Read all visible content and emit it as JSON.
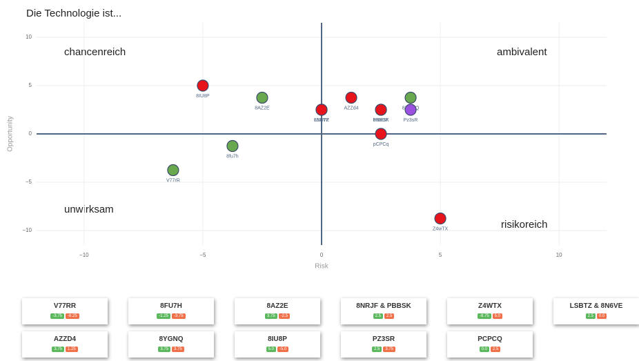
{
  "chart_data": {
    "type": "scatter",
    "title": "Die Technologie ist...",
    "x_label": "Risk",
    "y_label": "Opportunity",
    "xlim": [
      -12,
      12
    ],
    "ylim": [
      -11.5,
      11.5
    ],
    "xticks": [
      {
        "value": -10,
        "label": "−10"
      },
      {
        "value": -5,
        "label": "−5"
      },
      0,
      5,
      10
    ],
    "yticks": [
      {
        "value": -10,
        "label": "−10"
      },
      {
        "value": -5,
        "label": "−5"
      },
      0,
      5,
      10
    ],
    "grid": true,
    "annotations": [
      "chancenreich",
      "ambivalent",
      "unwirksam",
      "risikoreich"
    ],
    "points": [
      {
        "name": "V77rR",
        "x": -6.25,
        "y": -3.75,
        "color": "#6aa84f"
      },
      {
        "name": "8fu7h",
        "x": -3.75,
        "y": -1.25,
        "color": "#6aa84f"
      },
      {
        "name": "8AZ2E",
        "x": -2.5,
        "y": 3.75,
        "color": "#6aa84f"
      },
      {
        "name": "8IU8P",
        "x": -5,
        "y": 5,
        "color": "#e8141c"
      },
      {
        "name": "8N6VE",
        "x": 0,
        "y": 2.5,
        "color": "#3b5fc0"
      },
      {
        "name": "LSBTZ",
        "x": 0,
        "y": 2.5,
        "color": "#e8141c"
      },
      {
        "name": "AZZd4",
        "x": 1.25,
        "y": 3.75,
        "color": "#e8141c"
      },
      {
        "name": "8NRJF",
        "x": 2.5,
        "y": 2.5,
        "color": "#6aa84f"
      },
      {
        "name": "PBBSK",
        "x": 2.5,
        "y": 2.5,
        "color": "#e8141c"
      },
      {
        "name": "8YGNQ",
        "x": 3.75,
        "y": 3.75,
        "color": "#6aa84f"
      },
      {
        "name": "Pz3sR",
        "x": 3.75,
        "y": 2.5,
        "color": "#9b51e0"
      },
      {
        "name": "pCPCq",
        "x": 2.5,
        "y": 0,
        "color": "#e8141c"
      },
      {
        "name": "Z4wTX",
        "x": 5,
        "y": -8.75,
        "color": "#e8141c"
      }
    ]
  },
  "cards": [
    {
      "name": "V77RR",
      "values": [
        -3.75,
        -6.25
      ],
      "value_labels": [
        "-3.75",
        "-6.25"
      ]
    },
    {
      "name": "8FU7H",
      "values": [
        -1.25,
        -3.75
      ],
      "value_labels": [
        "-1.25",
        "-3.75"
      ]
    },
    {
      "name": "8AZ2E",
      "values": [
        3.75,
        -2.5
      ],
      "value_labels": [
        "3.75",
        "-2.5"
      ]
    },
    {
      "name": "8NRJF & PBBSK",
      "values": [
        2.5,
        2.5
      ],
      "value_labels": [
        "2.5",
        "2.5"
      ]
    },
    {
      "name": "Z4WTX",
      "values": [
        -8.75,
        5
      ],
      "value_labels": [
        "-8.75",
        "5.0"
      ]
    },
    {
      "name": "LSBTZ & 8N6VE",
      "values": [
        2.5,
        0
      ],
      "value_labels": [
        "2.5",
        "0.0"
      ]
    },
    {
      "name": "AZZD4",
      "values": [
        3.75,
        1.25
      ],
      "value_labels": [
        "3.75",
        "1.25"
      ]
    },
    {
      "name": "8YGNQ",
      "values": [
        3.75,
        3.75
      ],
      "value_labels": [
        "3.75",
        "3.75"
      ]
    },
    {
      "name": "8IU8P",
      "values": [
        5,
        -5
      ],
      "value_labels": [
        "5.0",
        "-5.0"
      ]
    },
    {
      "name": "PZ3SR",
      "values": [
        2.5,
        3.75
      ],
      "value_labels": [
        "2.5",
        "3.75"
      ]
    },
    {
      "name": "PCPCQ",
      "values": [
        0,
        2.5
      ],
      "value_labels": [
        "0.0",
        "2.5"
      ]
    }
  ]
}
